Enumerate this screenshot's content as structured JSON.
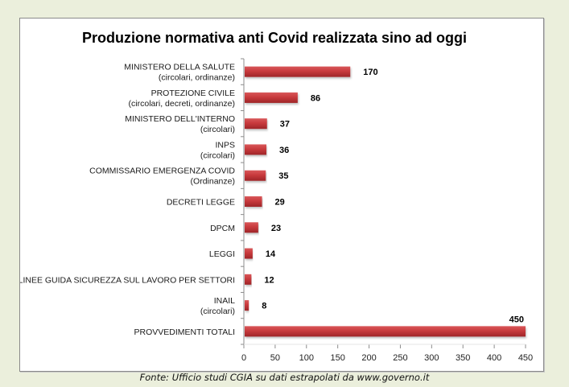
{
  "chart_data": {
    "type": "bar",
    "orientation": "horizontal",
    "title": "Produzione normativa anti Covid realizzata sino ad oggi",
    "categories": [
      [
        "MINISTERO DELLA SALUTE",
        "(circolari, ordinanze)"
      ],
      [
        "PROTEZIONE CIVILE",
        "(circolari, decreti, ordinanze)"
      ],
      [
        "MINISTERO DELL'INTERNO",
        "(circolari)"
      ],
      [
        "INPS",
        "(circolari)"
      ],
      [
        "COMMISSARIO EMERGENZA COVID",
        "(Ordinanze)"
      ],
      [
        "DECRETI LEGGE"
      ],
      [
        "DPCM"
      ],
      [
        "LEGGI"
      ],
      [
        "LINEE GUIDA SICUREZZA SUL LAVORO PER SETTORI"
      ],
      [
        "INAIL",
        "(circolari)"
      ],
      [
        "PROVVEDIMENTI TOTALI"
      ]
    ],
    "values": [
      170,
      86,
      37,
      36,
      35,
      29,
      23,
      14,
      12,
      8,
      450
    ],
    "xlabel": "",
    "ylabel": "",
    "xlim": [
      0,
      450
    ],
    "xticks": [
      0,
      50,
      100,
      150,
      200,
      250,
      300,
      350,
      400,
      450
    ],
    "grid": false,
    "legend": "none",
    "bar_color": "#c0383b",
    "data_labels": true
  },
  "source_note": "Fonte: Ufficio studi CGIA su dati estrapolati da www.governo.it"
}
